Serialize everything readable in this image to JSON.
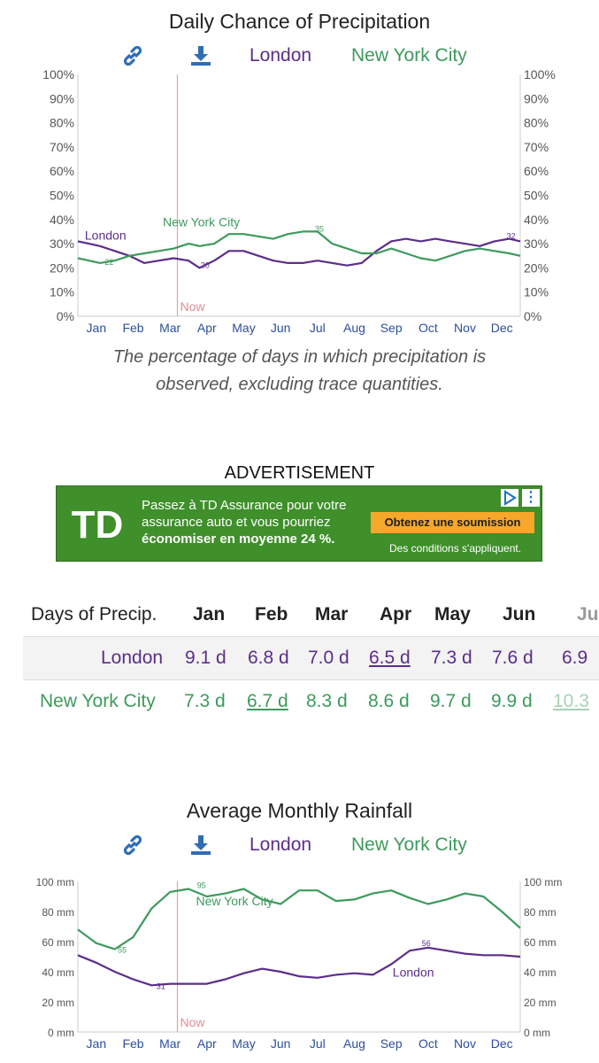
{
  "chart1": {
    "title": "Daily Chance of Precipitation",
    "legend": {
      "london": "London",
      "nyc": "New York City"
    },
    "yticks": [
      "100%",
      "90%",
      "80%",
      "70%",
      "60%",
      "50%",
      "40%",
      "30%",
      "20%",
      "10%",
      "0%"
    ],
    "months": [
      "Jan",
      "Feb",
      "Mar",
      "Apr",
      "May",
      "Jun",
      "Jul",
      "Aug",
      "Sep",
      "Oct",
      "Nov",
      "Dec"
    ],
    "now_label": "Now",
    "line_label_london": "London",
    "line_label_nyc": "New York City",
    "annotations": {
      "nyc_min": "22",
      "london_min": "20",
      "nyc_max": "35",
      "london_max": "32"
    },
    "caption_line1": "The percentage of days in which precipitation is",
    "caption_line2": "observed, excluding trace quantities."
  },
  "ad": {
    "label": "ADVERTISEMENT",
    "line1": "Passez à TD Assurance pour votre",
    "line2": "assurance auto et vous pourriez",
    "line3": "économiser en moyenne 24 %.",
    "button": "Obtenez une soumission",
    "conditions": "Des conditions s'appliquent.",
    "logo": "TD"
  },
  "table": {
    "header": [
      "Days of Precip.",
      "Jan",
      "Feb",
      "Mar",
      "Apr",
      "May",
      "Jun",
      "Ju"
    ],
    "london": [
      "London",
      "9.1 d",
      "6.8 d",
      "7.0 d",
      "6.5 d",
      "7.3 d",
      "7.6 d",
      "6.9"
    ],
    "nyc": [
      "New York City",
      "7.3 d",
      "6.7 d",
      "8.3 d",
      "8.6 d",
      "9.7 d",
      "9.9 d",
      "10.3"
    ]
  },
  "chart2": {
    "title": "Average Monthly Rainfall",
    "legend": {
      "london": "London",
      "nyc": "New York City"
    },
    "yticks": [
      "100 mm",
      "80 mm",
      "60 mm",
      "40 mm",
      "20 mm",
      "0 mm"
    ],
    "months": [
      "Jan",
      "Feb",
      "Mar",
      "Apr",
      "May",
      "Jun",
      "Jul",
      "Aug",
      "Sep",
      "Oct",
      "Nov",
      "Dec"
    ],
    "now_label": "Now",
    "line_label_london": "London",
    "line_label_nyc": "New York City",
    "annotations": {
      "nyc_min": "55",
      "nyc_max": "95",
      "london_min": "31",
      "london_max": "56"
    }
  },
  "colors": {
    "london": "#5b2d8a",
    "nyc": "#3d9a5c",
    "now": "#e8a0a8",
    "axis_text": "#555555",
    "month_text": "#2b4f9e"
  },
  "chart_data": [
    {
      "type": "line",
      "title": "Daily Chance of Precipitation",
      "ylabel": "",
      "ylim": [
        0,
        100
      ],
      "y_unit": "%",
      "x_range": [
        "Jan 1",
        "Dec 31"
      ],
      "series": [
        {
          "name": "London",
          "x_month": [
            0,
            0.3,
            0.6,
            1.0,
            1.4,
            1.8,
            2.2,
            2.6,
            3.0,
            3.3,
            3.7,
            4.1,
            4.5,
            4.9,
            5.3,
            5.7,
            6.1,
            6.5,
            6.9,
            7.3,
            7.7,
            8.1,
            8.5,
            8.9,
            9.3,
            9.7,
            10.1,
            10.5,
            10.9,
            11.3,
            11.7,
            12.0
          ],
          "values": [
            31,
            30,
            29,
            27,
            25,
            22,
            23,
            24,
            23,
            20,
            23,
            27,
            27,
            25,
            23,
            22,
            22,
            23,
            22,
            21,
            22,
            27,
            31,
            32,
            31,
            32,
            31,
            30,
            29,
            31,
            32,
            31
          ]
        },
        {
          "name": "New York City",
          "x_month": [
            0,
            0.3,
            0.6,
            1.0,
            1.4,
            1.8,
            2.2,
            2.6,
            3.0,
            3.3,
            3.7,
            4.1,
            4.5,
            4.9,
            5.3,
            5.7,
            6.1,
            6.5,
            6.9,
            7.3,
            7.7,
            8.1,
            8.5,
            8.9,
            9.3,
            9.7,
            10.1,
            10.5,
            10.9,
            11.3,
            11.7,
            12.0
          ],
          "values": [
            24,
            23,
            22,
            23,
            25,
            26,
            27,
            28,
            30,
            29,
            30,
            34,
            34,
            33,
            32,
            34,
            35,
            35,
            30,
            28,
            26,
            26,
            28,
            26,
            24,
            23,
            25,
            27,
            28,
            27,
            26,
            25
          ]
        }
      ],
      "now_month": 2.7,
      "grid": false
    },
    {
      "type": "line",
      "title": "Average Monthly Rainfall",
      "ylabel": "",
      "ylim": [
        0,
        100
      ],
      "y_unit": "mm",
      "series": [
        {
          "name": "London",
          "x_month": [
            0,
            0.5,
            1.0,
            1.5,
            2.0,
            2.5,
            3.0,
            3.5,
            4.0,
            4.5,
            5.0,
            5.5,
            6.0,
            6.5,
            7.0,
            7.5,
            8.0,
            8.5,
            9.0,
            9.5,
            10.0,
            10.5,
            11.0,
            11.5,
            12.0
          ],
          "values": [
            51,
            46,
            40,
            35,
            31,
            32,
            32,
            32,
            35,
            39,
            42,
            40,
            37,
            36,
            38,
            39,
            38,
            45,
            54,
            56,
            54,
            52,
            51,
            51,
            50
          ]
        },
        {
          "name": "New York City",
          "x_month": [
            0,
            0.5,
            1.0,
            1.5,
            2.0,
            2.5,
            3.0,
            3.5,
            4.0,
            4.5,
            5.0,
            5.5,
            6.0,
            6.5,
            7.0,
            7.5,
            8.0,
            8.5,
            9.0,
            9.5,
            10.0,
            10.5,
            11.0,
            11.5,
            12.0
          ],
          "values": [
            68,
            59,
            55,
            63,
            82,
            93,
            95,
            90,
            92,
            95,
            88,
            85,
            94,
            94,
            87,
            88,
            92,
            94,
            89,
            85,
            88,
            92,
            90,
            80,
            69
          ]
        }
      ],
      "now_month": 2.7,
      "grid": false
    }
  ]
}
